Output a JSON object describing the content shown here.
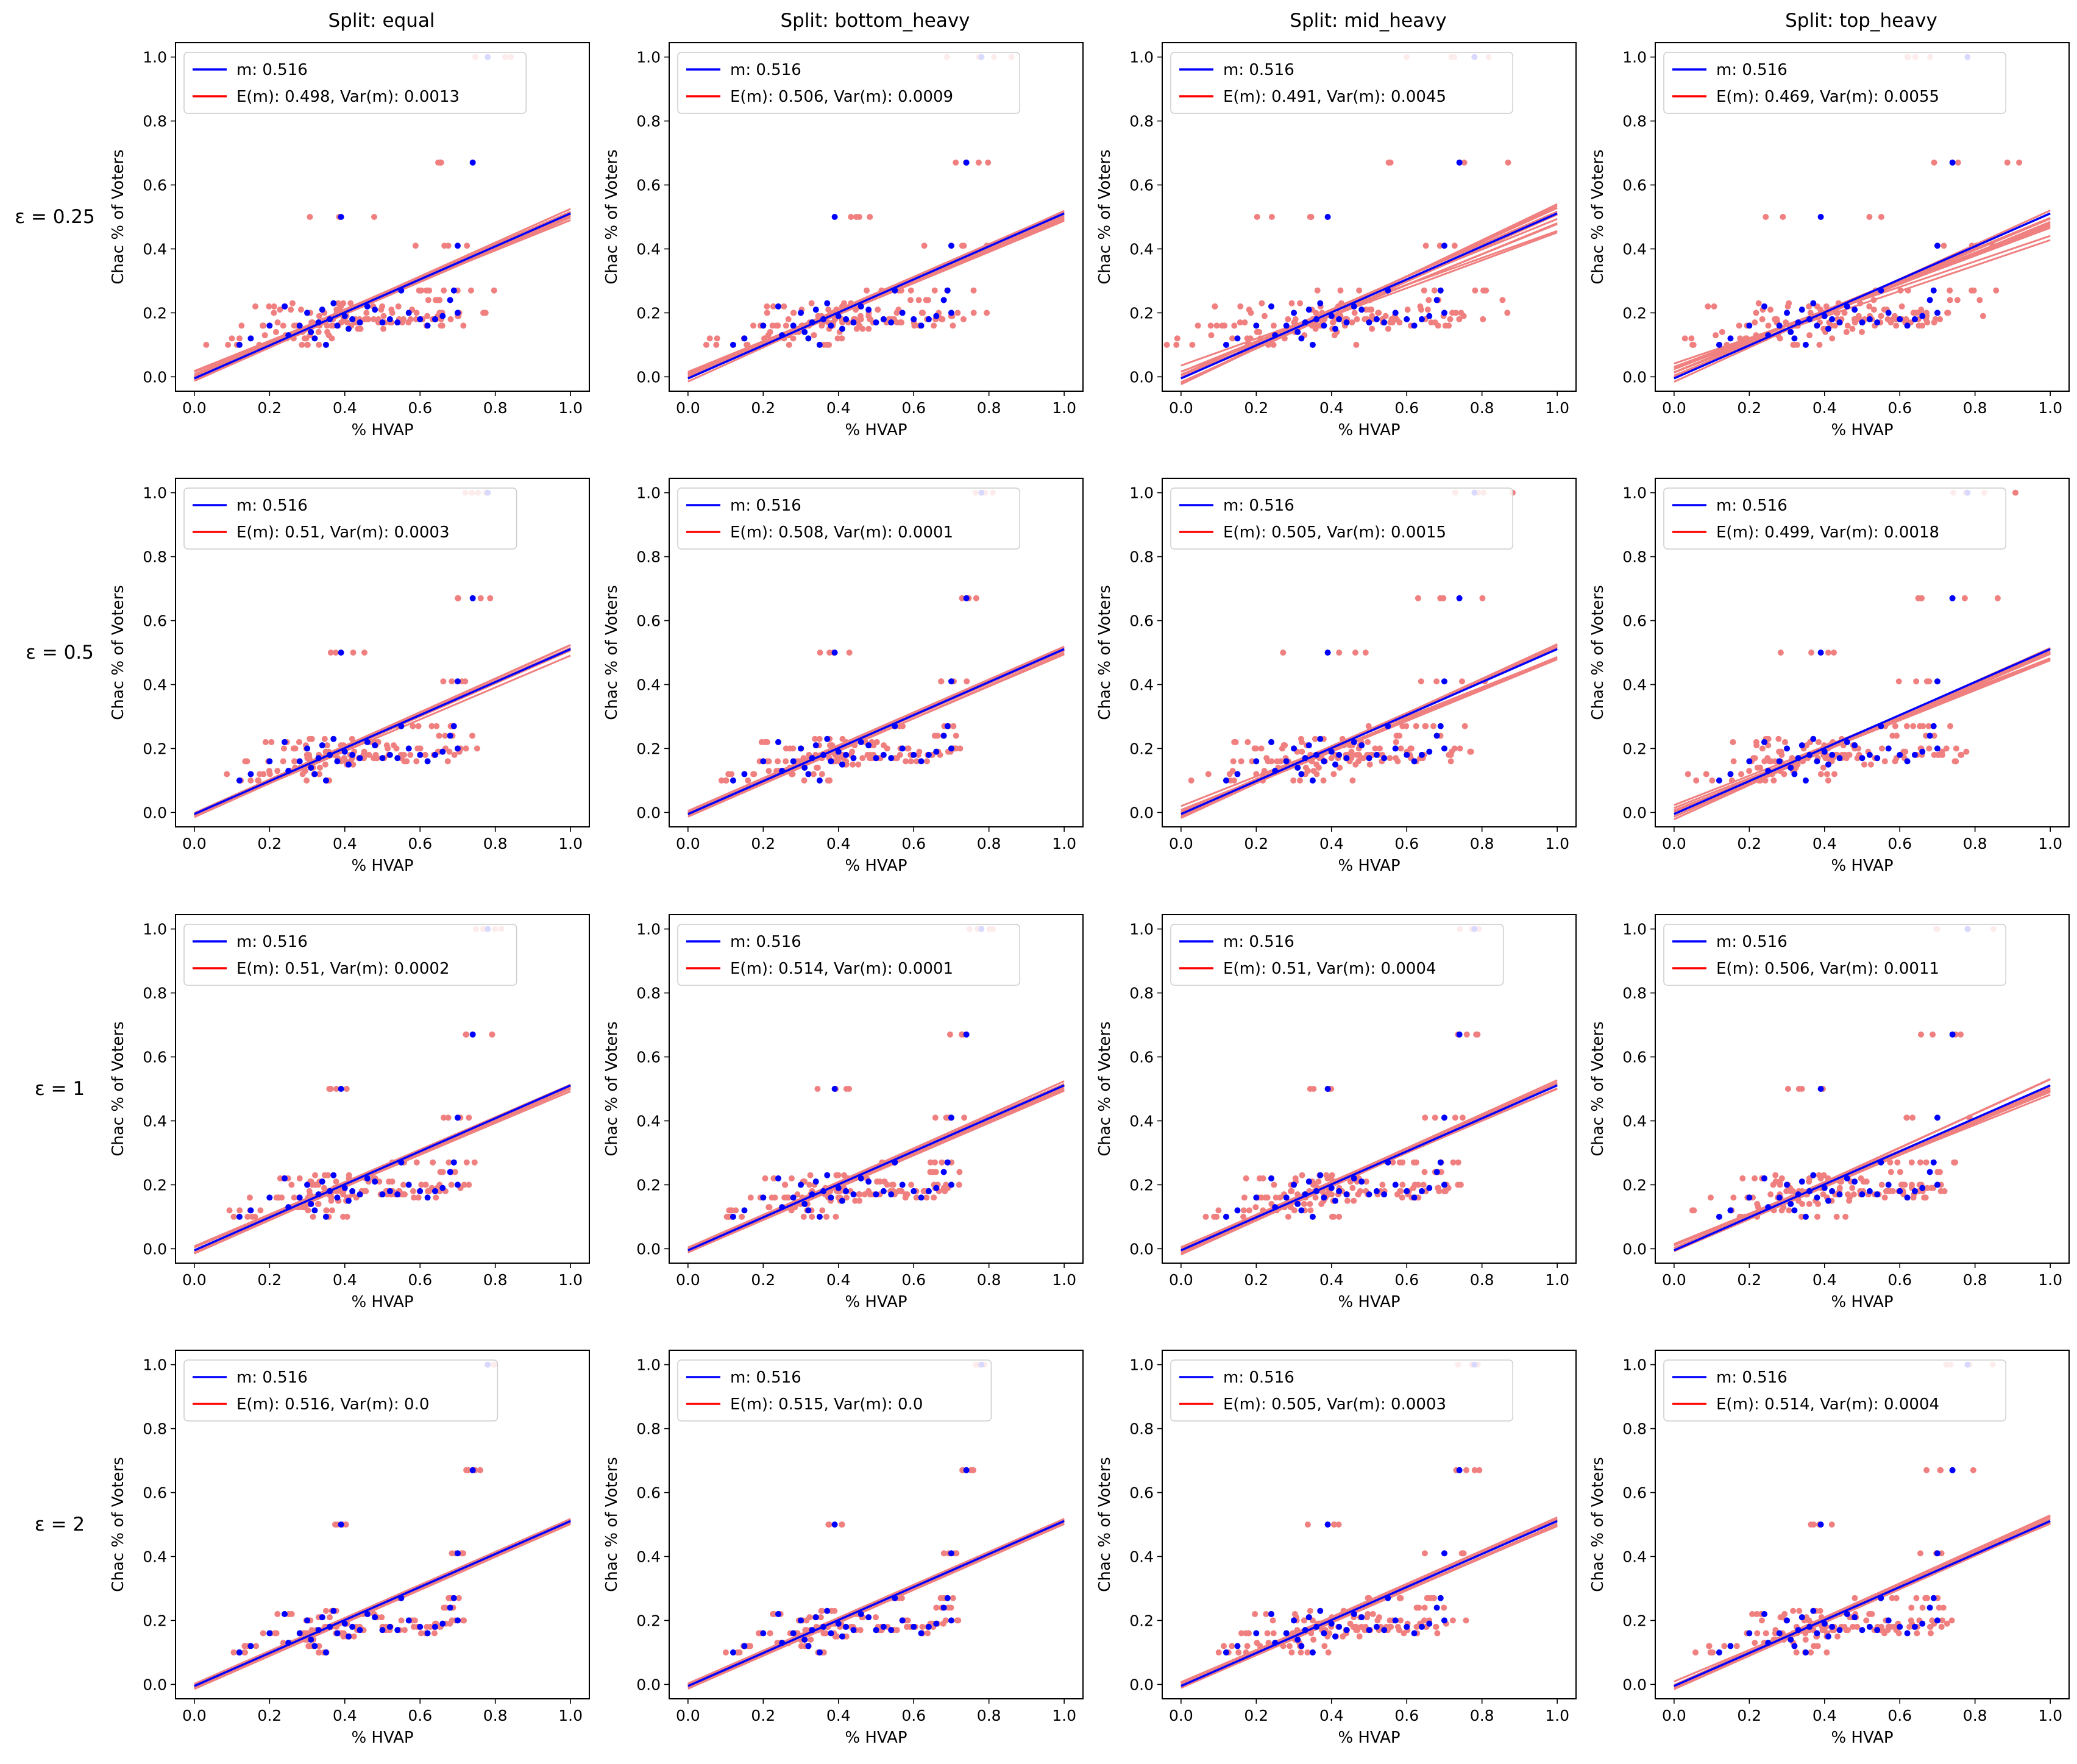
{
  "figure": {
    "column_titles": [
      "Split: equal",
      "Split: bottom_heavy",
      "Split: mid_heavy",
      "Split: top_heavy"
    ],
    "row_labels": [
      "ε = 0.25",
      "ε = 0.5",
      "ε = 1",
      "ε = 2"
    ],
    "xlabel": "% HVAP",
    "ylabel": "Chac % of Voters",
    "x_ticks": [
      "0.0",
      "0.2",
      "0.4",
      "0.6",
      "0.8",
      "1.0"
    ],
    "y_ticks": [
      "0.0",
      "0.2",
      "0.4",
      "0.6",
      "0.8",
      "1.0"
    ],
    "colors": {
      "true_line": "#0000ff",
      "legend_red": "#ff0000",
      "noisy": "#f08080",
      "true_points": "#0000ff"
    }
  },
  "chart_data": {
    "type": "scatter",
    "xlim": [
      -0.05,
      1.05
    ],
    "ylim": [
      -0.045,
      1.045
    ],
    "grid": false,
    "legend_position": "upper left",
    "true_slope": 0.516,
    "true_intercept": -0.005,
    "true_points": [
      [
        0.12,
        0.1
      ],
      [
        0.15,
        0.12
      ],
      [
        0.2,
        0.16
      ],
      [
        0.24,
        0.22
      ],
      [
        0.25,
        0.13
      ],
      [
        0.28,
        0.16
      ],
      [
        0.3,
        0.2
      ],
      [
        0.31,
        0.14
      ],
      [
        0.32,
        0.12
      ],
      [
        0.33,
        0.17
      ],
      [
        0.34,
        0.21
      ],
      [
        0.35,
        0.1
      ],
      [
        0.36,
        0.18
      ],
      [
        0.37,
        0.23
      ],
      [
        0.38,
        0.16
      ],
      [
        0.4,
        0.19
      ],
      [
        0.41,
        0.15
      ],
      [
        0.42,
        0.18
      ],
      [
        0.44,
        0.17
      ],
      [
        0.46,
        0.22
      ],
      [
        0.48,
        0.21
      ],
      [
        0.5,
        0.17
      ],
      [
        0.52,
        0.18
      ],
      [
        0.54,
        0.17
      ],
      [
        0.55,
        0.27
      ],
      [
        0.57,
        0.2
      ],
      [
        0.6,
        0.18
      ],
      [
        0.62,
        0.16
      ],
      [
        0.64,
        0.18
      ],
      [
        0.66,
        0.19
      ],
      [
        0.68,
        0.24
      ],
      [
        0.69,
        0.27
      ],
      [
        0.7,
        0.2
      ],
      [
        0.39,
        0.5
      ],
      [
        0.7,
        0.41
      ],
      [
        0.74,
        0.67
      ],
      [
        0.78,
        1.0
      ]
    ],
    "panels": [
      {
        "row": 0,
        "col": 0,
        "legend": [
          "m: 0.516",
          "E(m): 0.498, Var(m): 0.0013"
        ],
        "mean_slope": 0.498,
        "var": 0.0013
      },
      {
        "row": 0,
        "col": 1,
        "legend": [
          "m: 0.516",
          "E(m): 0.506, Var(m): 0.0009"
        ],
        "mean_slope": 0.506,
        "var": 0.0009
      },
      {
        "row": 0,
        "col": 2,
        "legend": [
          "m: 0.516",
          "E(m): 0.491, Var(m): 0.0045"
        ],
        "mean_slope": 0.491,
        "var": 0.0045
      },
      {
        "row": 0,
        "col": 3,
        "legend": [
          "m: 0.516",
          "E(m): 0.469, Var(m): 0.0055"
        ],
        "mean_slope": 0.469,
        "var": 0.0055
      },
      {
        "row": 1,
        "col": 0,
        "legend": [
          "m: 0.516",
          "E(m): 0.51, Var(m): 0.0003"
        ],
        "mean_slope": 0.51,
        "var": 0.0003
      },
      {
        "row": 1,
        "col": 1,
        "legend": [
          "m: 0.516",
          "E(m): 0.508, Var(m): 0.0001"
        ],
        "mean_slope": 0.508,
        "var": 0.0001
      },
      {
        "row": 1,
        "col": 2,
        "legend": [
          "m: 0.516",
          "E(m): 0.505, Var(m): 0.0015"
        ],
        "mean_slope": 0.505,
        "var": 0.0015
      },
      {
        "row": 1,
        "col": 3,
        "legend": [
          "m: 0.516",
          "E(m): 0.499, Var(m): 0.0018"
        ],
        "mean_slope": 0.499,
        "var": 0.0018
      },
      {
        "row": 2,
        "col": 0,
        "legend": [
          "m: 0.516",
          "E(m): 0.51, Var(m): 0.0002"
        ],
        "mean_slope": 0.51,
        "var": 0.0002
      },
      {
        "row": 2,
        "col": 1,
        "legend": [
          "m: 0.516",
          "E(m): 0.514, Var(m): 0.0001"
        ],
        "mean_slope": 0.514,
        "var": 0.0001
      },
      {
        "row": 2,
        "col": 2,
        "legend": [
          "m: 0.516",
          "E(m): 0.51, Var(m): 0.0004"
        ],
        "mean_slope": 0.51,
        "var": 0.0004
      },
      {
        "row": 2,
        "col": 3,
        "legend": [
          "m: 0.516",
          "E(m): 0.506, Var(m): 0.0011"
        ],
        "mean_slope": 0.506,
        "var": 0.0011
      },
      {
        "row": 3,
        "col": 0,
        "legend": [
          "m: 0.516",
          "E(m): 0.516, Var(m): 0.0"
        ],
        "mean_slope": 0.516,
        "var": 0.0
      },
      {
        "row": 3,
        "col": 1,
        "legend": [
          "m: 0.516",
          "E(m): 0.515, Var(m): 0.0"
        ],
        "mean_slope": 0.515,
        "var": 0.0
      },
      {
        "row": 3,
        "col": 2,
        "legend": [
          "m: 0.516",
          "E(m): 0.505, Var(m): 0.0003"
        ],
        "mean_slope": 0.505,
        "var": 0.0003
      },
      {
        "row": 3,
        "col": 3,
        "legend": [
          "m: 0.516",
          "E(m): 0.514, Var(m): 0.0004"
        ],
        "mean_slope": 0.514,
        "var": 0.0004
      }
    ]
  }
}
